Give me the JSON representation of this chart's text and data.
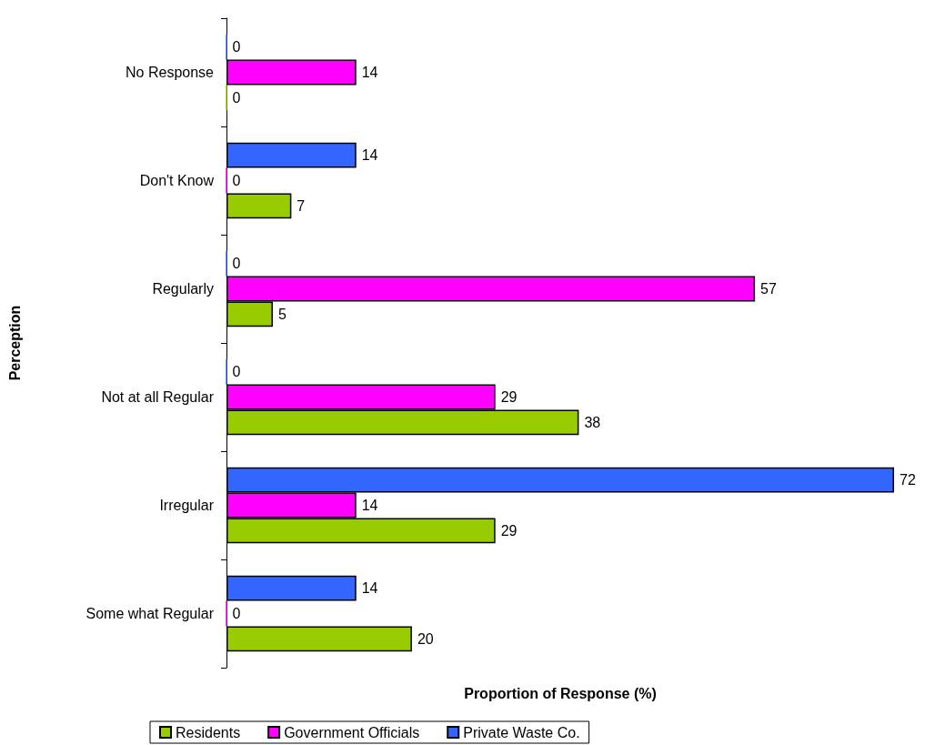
{
  "chart_data": {
    "type": "bar",
    "orientation": "horizontal",
    "xlabel": "Proportion of Response (%)",
    "ylabel": "Perception",
    "categories": [
      "No Response",
      "Don't Know",
      "Regularly",
      "Not at all Regular",
      "Irregular",
      "Some what Regular"
    ],
    "series": [
      {
        "name": "Residents",
        "color": "#99cc00",
        "values": [
          0,
          7,
          5,
          38,
          29,
          20
        ]
      },
      {
        "name": "Government Officials",
        "color": "#ff00ff",
        "values": [
          14,
          0,
          57,
          29,
          14,
          0
        ]
      },
      {
        "name": "Private Waste Co.",
        "color": "#3366ff",
        "values": [
          0,
          14,
          0,
          0,
          72,
          14
        ]
      }
    ],
    "data_labels": true,
    "grid": false,
    "legend": "bottom"
  }
}
